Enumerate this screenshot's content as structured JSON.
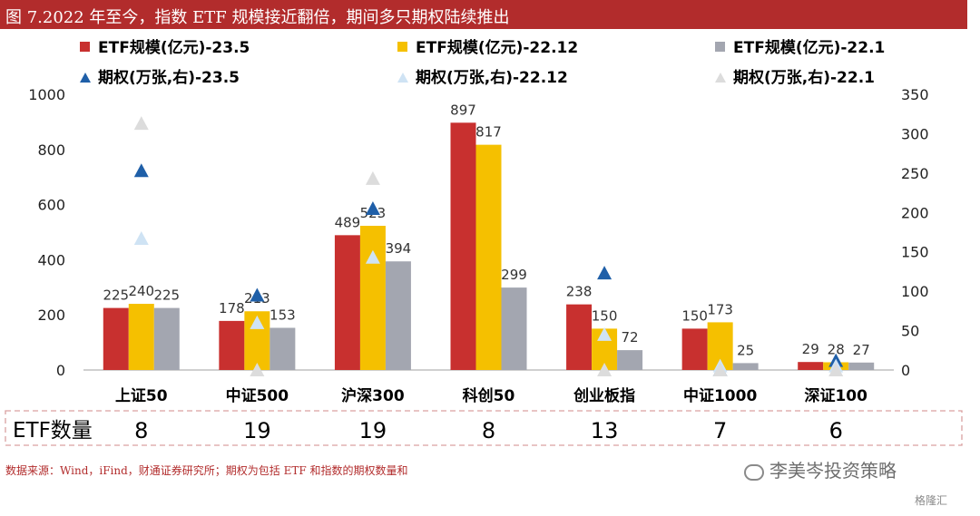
{
  "title": "图 7.2022 年至今，指数 ETF 规模接近翻倍，期间多只期权陆续推出",
  "source_note": "数据来源：Wind，iFind，财通证券研究所；期权为包括 ETF 和指数的期权数量和",
  "brand": "李美岑投资策略",
  "watermark": "格隆汇",
  "etf_count_label": "ETF数量",
  "etf_counts": [
    "8",
    "19",
    "19",
    "8",
    "13",
    "7",
    "6"
  ],
  "colors": {
    "title_bar": "#b22c2c",
    "etf_23_5": "#c8302f",
    "etf_22_12": "#f5c000",
    "etf_22_1": "#a3a6b0",
    "opt_23_5": "#1f5fa8",
    "opt_22_12": "#cfe3f4",
    "opt_22_1": "#dcdcdc"
  },
  "chart_data": {
    "type": "bar",
    "categories": [
      "上证50",
      "中证500",
      "沪深300",
      "科创50",
      "创业板指",
      "中证1000",
      "深证100"
    ],
    "series": [
      {
        "name": "ETF规模(亿元)-23.5",
        "axis": "left",
        "values": [
          225,
          178,
          489,
          897,
          238,
          150,
          29
        ],
        "labels": [
          "225",
          "178",
          "489",
          "897",
          "238",
          "150",
          "29"
        ]
      },
      {
        "name": "ETF规模(亿元)-22.12",
        "axis": "left",
        "values": [
          240,
          213,
          523,
          817,
          150,
          173,
          28
        ],
        "labels": [
          "240",
          "213",
          "523",
          "817",
          "150",
          "173",
          "28"
        ]
      },
      {
        "name": "ETF规模(亿元)-22.1",
        "axis": "left",
        "values": [
          225,
          153,
          394,
          299,
          72,
          25,
          27
        ],
        "labels": [
          "225",
          "153",
          "394",
          "299",
          "72",
          "25",
          "27"
        ]
      },
      {
        "name": "期权(万张,右)-23.5",
        "axis": "right",
        "marker": "triangle",
        "values": [
          253,
          95,
          205,
          null,
          123,
          0,
          12
        ]
      },
      {
        "name": "期权(万张,右)-22.12",
        "axis": "right",
        "marker": "triangle",
        "values": [
          167,
          60,
          143,
          null,
          45,
          5,
          5
        ]
      },
      {
        "name": "期权(万张,右)-22.1",
        "axis": "right",
        "marker": "triangle",
        "values": [
          313,
          0,
          243,
          null,
          0,
          0,
          0
        ]
      }
    ],
    "y_left": {
      "min": 0,
      "max": 1000,
      "ticks": [
        "0",
        "200",
        "400",
        "600",
        "800",
        "1000"
      ]
    },
    "y_right": {
      "min": 0,
      "max": 350,
      "ticks": [
        "0",
        "50",
        "100",
        "150",
        "200",
        "250",
        "300",
        "350"
      ]
    },
    "legend_position": "top",
    "grid": false
  }
}
